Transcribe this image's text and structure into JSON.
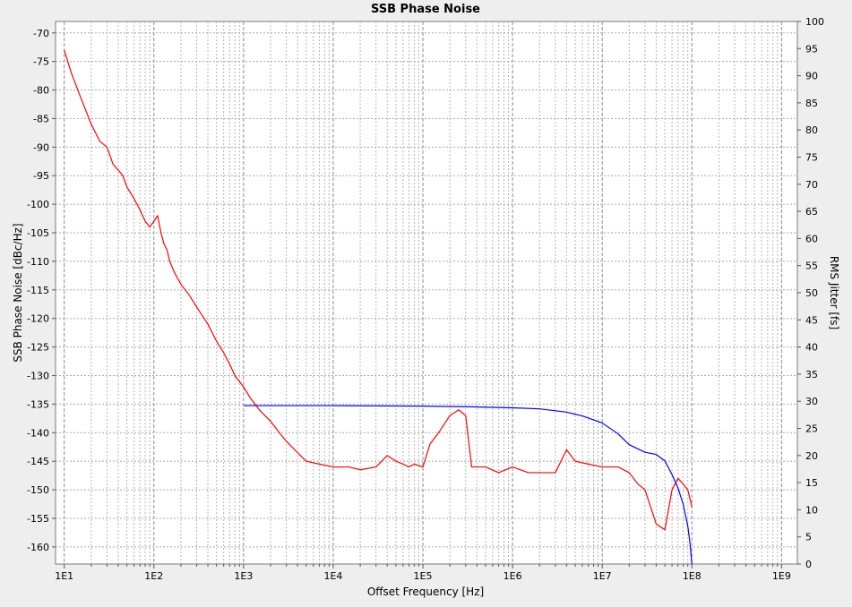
{
  "chart_data": {
    "type": "line",
    "title": "SSB Phase Noise",
    "xlabel": "Offset Frequency [Hz]",
    "ylabel": "SSB Phase Noise [dBc/Hz]",
    "y2label": "RMS Jitter [fs]",
    "xscale": "log",
    "xlim": [
      8,
      1500000000
    ],
    "ylim": [
      -163,
      -68
    ],
    "y2lim": [
      0,
      100
    ],
    "grid": true,
    "legend": "none",
    "x_ticks": [
      {
        "value": 10,
        "label": "1E1"
      },
      {
        "value": 100,
        "label": "1E2"
      },
      {
        "value": 1000,
        "label": "1E3"
      },
      {
        "value": 10000,
        "label": "1E4"
      },
      {
        "value": 100000,
        "label": "1E5"
      },
      {
        "value": 1000000,
        "label": "1E6"
      },
      {
        "value": 10000000,
        "label": "1E7"
      },
      {
        "value": 100000000,
        "label": "1E8"
      },
      {
        "value": 1000000000,
        "label": "1E9"
      }
    ],
    "y_ticks": [
      -160,
      -155,
      -150,
      -145,
      -140,
      -135,
      -130,
      -125,
      -120,
      -115,
      -110,
      -105,
      -100,
      -95,
      -90,
      -85,
      -80,
      -75,
      -70
    ],
    "y2_ticks": [
      0,
      5,
      10,
      15,
      20,
      25,
      30,
      35,
      40,
      45,
      50,
      55,
      60,
      65,
      70,
      75,
      80,
      85,
      90,
      95,
      100
    ],
    "series": [
      {
        "name": "",
        "axis": "left",
        "color": "#ff0000",
        "x": [
          10,
          12,
          15,
          20,
          25,
          30,
          35,
          40,
          45,
          50,
          60,
          70,
          80,
          90,
          100,
          110,
          120,
          130,
          140,
          150,
          170,
          200,
          250,
          300,
          400,
          500,
          600,
          700,
          800,
          1000,
          1200,
          1500,
          2000,
          2500,
          3000,
          4000,
          5000,
          7000,
          10000,
          15000,
          20000,
          30000,
          40000,
          50000,
          60000,
          70000,
          80000,
          100000,
          120000,
          150000,
          200000,
          250000,
          300000,
          350000,
          400000,
          500000,
          700000,
          1000000,
          1500000,
          2000000,
          3000000,
          4000000,
          5000000,
          7000000,
          10000000,
          15000000,
          20000000,
          25000000,
          30000000,
          40000000,
          50000000,
          60000000,
          70000000,
          80000000,
          90000000,
          100000000
        ],
        "y": [
          -73,
          -77,
          -81,
          -86,
          -89,
          -90,
          -93,
          -94,
          -95,
          -97,
          -99,
          -101,
          -103,
          -104,
          -103,
          -102,
          -105,
          -107,
          -108,
          -110,
          -112,
          -114,
          -116,
          -118,
          -121,
          -124,
          -126,
          -128,
          -130,
          -132,
          -134,
          -136,
          -138,
          -140,
          -141.5,
          -143.5,
          -145,
          -145.5,
          -146,
          -146,
          -146.5,
          -146,
          -144,
          -145,
          -145.5,
          -146,
          -145.5,
          -146,
          -142,
          -140,
          -137,
          -136,
          -137,
          -146,
          -146,
          -146,
          -147,
          -146,
          -147,
          -147,
          -147,
          -143,
          -145,
          -145.5,
          -146,
          -146,
          -147,
          -149,
          -150,
          -156,
          -157,
          -150,
          -148,
          -149,
          -150,
          -153
        ]
      },
      {
        "name": "",
        "axis": "right",
        "color": "#0000ff",
        "x": [
          1000,
          10000,
          100000,
          300000,
          1000000,
          2000000,
          4000000,
          6000000,
          10000000,
          15000000,
          20000000,
          30000000,
          40000000,
          50000000,
          60000000,
          70000000,
          80000000,
          90000000,
          95000000,
          100000000
        ],
        "y": [
          29.2,
          29.2,
          29.1,
          29.0,
          28.8,
          28.6,
          28.0,
          27.3,
          26.0,
          24.0,
          22.0,
          20.6,
          20.2,
          19.0,
          16.5,
          14.0,
          11.0,
          7.0,
          4.0,
          0
        ]
      }
    ]
  }
}
